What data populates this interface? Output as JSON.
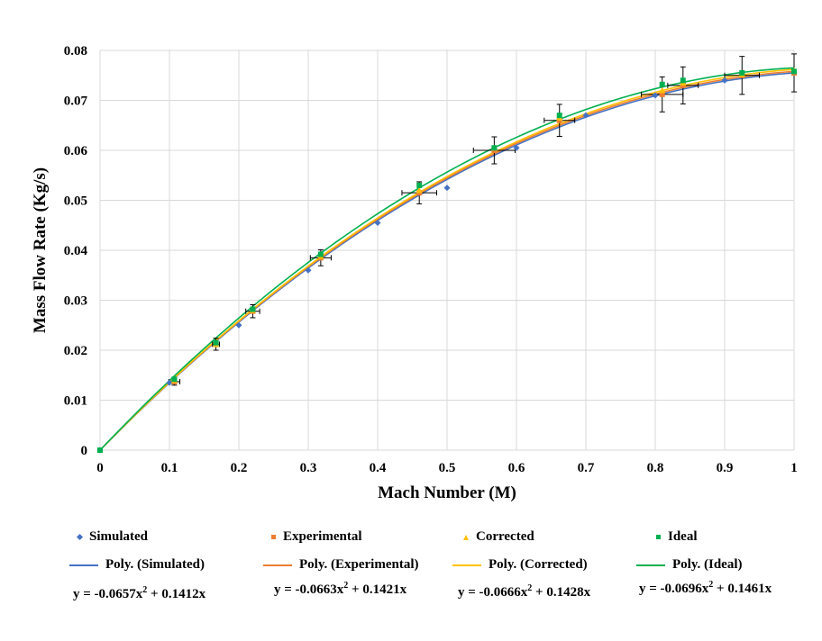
{
  "chart_data": {
    "type": "scatter",
    "xlabel": "Mach Number (M)",
    "ylabel": "Mass Flow Rate (Kg/s)",
    "xlim": [
      0,
      1
    ],
    "ylim": [
      0,
      0.08
    ],
    "x_ticks": [
      "0",
      "0.1",
      "0.2",
      "0.3",
      "0.4",
      "0.5",
      "0.6",
      "0.7",
      "0.8",
      "0.9",
      "1"
    ],
    "y_ticks": [
      "0",
      "0.01",
      "0.02",
      "0.03",
      "0.04",
      "0.05",
      "0.06",
      "0.07",
      "0.08"
    ],
    "grid": true,
    "legend_position": "bottom",
    "series": [
      {
        "name": "Simulated",
        "marker": "diamond",
        "color": "#4472C4",
        "x": [
          0,
          0.1,
          0.2,
          0.3,
          0.4,
          0.5,
          0.6,
          0.7,
          0.8,
          0.9,
          1.0
        ],
        "y": [
          0,
          0.0135,
          0.025,
          0.036,
          0.0455,
          0.0525,
          0.0605,
          0.067,
          0.071,
          0.074,
          0.0755
        ]
      },
      {
        "name": "Experimental",
        "marker": "square",
        "color": "#ED7D31",
        "x": [
          0,
          0.107,
          0.167,
          0.22,
          0.318,
          0.46,
          0.568,
          0.662,
          0.81,
          0.84,
          0.925,
          1.0
        ],
        "y": [
          0,
          0.0137,
          0.0212,
          0.0278,
          0.0385,
          0.0515,
          0.06,
          0.066,
          0.0712,
          0.073,
          0.075,
          0.0755
        ],
        "x_err": [
          0,
          0.008,
          0.005,
          0.01,
          0.015,
          0.025,
          0.03,
          0.022,
          0.03,
          0.022,
          0.025,
          0
        ],
        "y_err": [
          0,
          0.0007,
          0.0012,
          0.0013,
          0.0016,
          0.0022,
          0.0027,
          0.0032,
          0.0035,
          0.0037,
          0.0038,
          0.0038
        ]
      },
      {
        "name": "Corrected",
        "marker": "triangle",
        "color": "#FFC000",
        "x": [
          0,
          0.107,
          0.167,
          0.22,
          0.318,
          0.46,
          0.568,
          0.662,
          0.81,
          0.84,
          0.925,
          1.0
        ],
        "y": [
          0,
          0.014,
          0.0212,
          0.028,
          0.0388,
          0.052,
          0.0605,
          0.0665,
          0.072,
          0.0735,
          0.0752,
          0.076
        ]
      },
      {
        "name": "Ideal",
        "marker": "square",
        "color": "#00B050",
        "x": [
          0,
          0.107,
          0.167,
          0.22,
          0.318,
          0.46,
          0.568,
          0.662,
          0.81,
          0.84,
          0.925,
          1.0
        ],
        "y": [
          0,
          0.0142,
          0.0215,
          0.0282,
          0.0392,
          0.053,
          0.0605,
          0.067,
          0.0732,
          0.074,
          0.0755,
          0.0758
        ]
      }
    ],
    "trendlines": [
      {
        "name": "Poly. (Simulated)",
        "color": "#4472C4",
        "a": -0.0657,
        "b": 0.1412
      },
      {
        "name": "Poly. (Experimental)",
        "color": "#ED7D31",
        "a": -0.0663,
        "b": 0.1421
      },
      {
        "name": "Poly. (Corrected)",
        "color": "#FFC000",
        "a": -0.0666,
        "b": 0.1428
      },
      {
        "name": "Poly. (Ideal)",
        "color": "#00B050",
        "a": -0.0696,
        "b": 0.1461
      }
    ],
    "equations": [
      {
        "pre": "y = -0.0657x",
        "post": " + 0.1412x"
      },
      {
        "pre": "y = -0.0663x",
        "post": " + 0.1421x"
      },
      {
        "pre": "y = -0.0666x",
        "post": " + 0.1428x"
      },
      {
        "pre": "y = -0.0696x",
        "post": " + 0.1461x"
      }
    ],
    "superscript": "2"
  }
}
